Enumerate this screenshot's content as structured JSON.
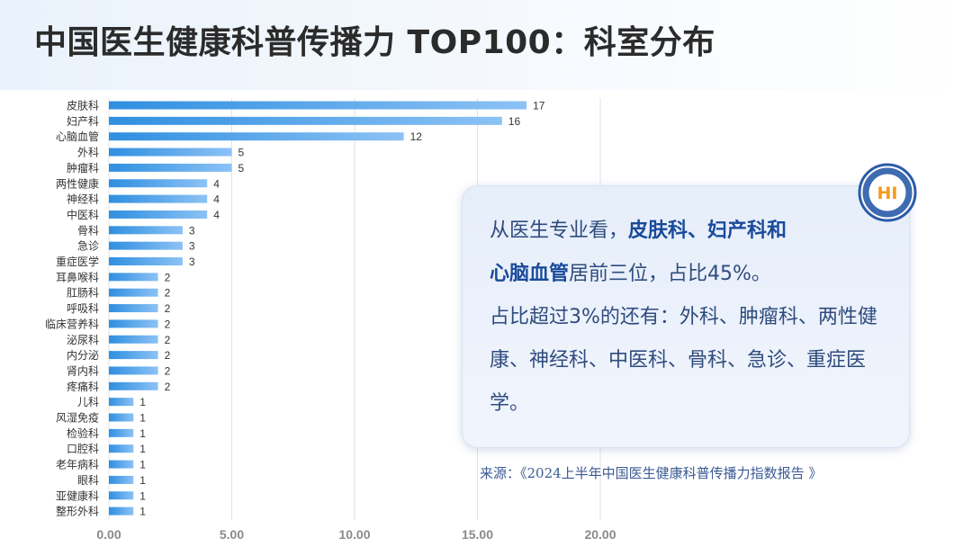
{
  "title": "中国医生健康科普传播力 TOP100：科室分布",
  "callout": {
    "p1_a": "从医生专业看，",
    "p1_b": "皮肤科、妇产科和",
    "p1_c": "心脑血管",
    "p1_d": "居前三位，占比45%。",
    "p2": "占比超过3%的还有：外科、肿瘤科、两性健康、神经科、中医科、骨科、急诊、重症医学。"
  },
  "source": "来源：《2024上半年中国医生健康科普传播力指数报告 》",
  "logo": {
    "text": "HI",
    "ring_color": "#2a5ba8",
    "accent_color": "#f39a1e"
  },
  "colors": {
    "bar_start": "#2f8fe0",
    "bar_end": "#8cc2f5",
    "axis_text": "#8a8a8a",
    "grid": "#e2e2e2"
  },
  "chart_data": {
    "type": "bar",
    "orientation": "horizontal",
    "categories": [
      "皮肤科",
      "妇产科",
      "心脑血管",
      "外科",
      "肿瘤科",
      "两性健康",
      "神经科",
      "中医科",
      "骨科",
      "急诊",
      "重症医学",
      "耳鼻喉科",
      "肛肠科",
      "呼吸科",
      "临床营养科",
      "泌尿科",
      "内分泌",
      "肾内科",
      "疼痛科",
      "儿科",
      "风湿免疫",
      "检验科",
      "口腔科",
      "老年病科",
      "眼科",
      "亚健康科",
      "整形外科"
    ],
    "values": [
      17,
      16,
      12,
      5,
      5,
      4,
      4,
      4,
      3,
      3,
      3,
      2,
      2,
      2,
      2,
      2,
      2,
      2,
      2,
      1,
      1,
      1,
      1,
      1,
      1,
      1,
      1
    ],
    "xlim": [
      0,
      20
    ],
    "xticks": [
      "0.00",
      "5.00",
      "10.00",
      "15.00",
      "20.00"
    ],
    "grid": "vertical",
    "title": "",
    "xlabel": "",
    "ylabel": ""
  }
}
